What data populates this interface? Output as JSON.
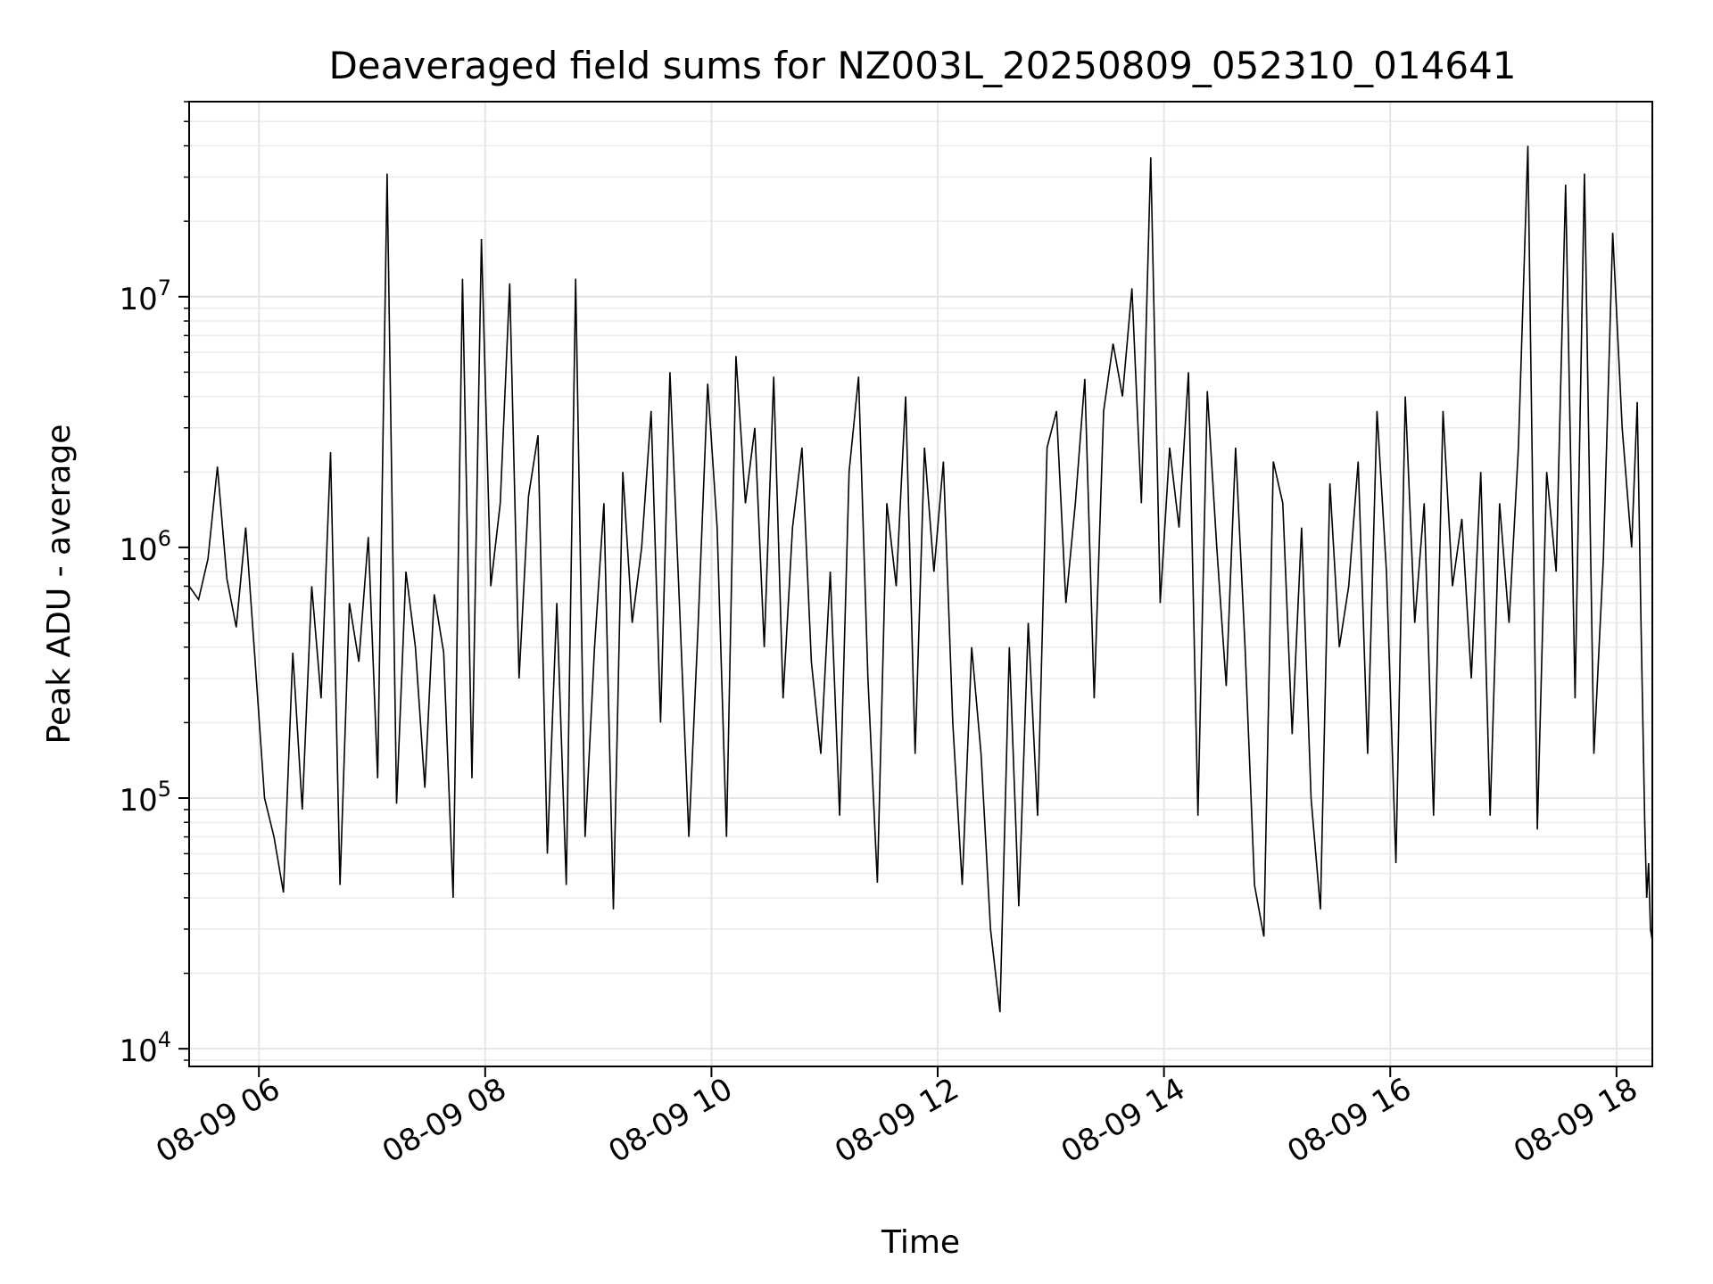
{
  "chart_data": {
    "type": "line",
    "title": "Deaveraged field sums for NZ003L_20250809_052310_014641",
    "xlabel": "Time",
    "ylabel": "Peak ADU - average",
    "yscale": "log",
    "ylim": [
      8500,
      60000000
    ],
    "xlim": [
      "2025-08-09 05:23",
      "2025-08-09 18:19"
    ],
    "grid": true,
    "line_color": "#000000",
    "x_ticks": [
      {
        "label": "08-09 06",
        "time": "2025-08-09 06:00"
      },
      {
        "label": "08-09 08",
        "time": "2025-08-09 08:00"
      },
      {
        "label": "08-09 10",
        "time": "2025-08-09 10:00"
      },
      {
        "label": "08-09 12",
        "time": "2025-08-09 12:00"
      },
      {
        "label": "08-09 14",
        "time": "2025-08-09 14:00"
      },
      {
        "label": "08-09 16",
        "time": "2025-08-09 16:00"
      },
      {
        "label": "08-09 18",
        "time": "2025-08-09 18:00"
      }
    ],
    "y_ticks": [
      {
        "base": "10",
        "exp": "4",
        "value": 10000
      },
      {
        "base": "10",
        "exp": "5",
        "value": 100000
      },
      {
        "base": "10",
        "exp": "6",
        "value": 1000000
      },
      {
        "base": "10",
        "exp": "7",
        "value": 10000000
      }
    ],
    "series": [
      {
        "points": [
          [
            "05:23",
            700000
          ],
          [
            "05:28",
            620000
          ],
          [
            "05:33",
            900000
          ],
          [
            "05:38",
            2100000
          ],
          [
            "05:43",
            750000
          ],
          [
            "05:48",
            480000
          ],
          [
            "05:53",
            1200000
          ],
          [
            "05:58",
            350000
          ],
          [
            "06:03",
            100000
          ],
          [
            "06:08",
            70000
          ],
          [
            "06:13",
            42000
          ],
          [
            "06:18",
            380000
          ],
          [
            "06:23",
            90000
          ],
          [
            "06:28",
            700000
          ],
          [
            "06:33",
            250000
          ],
          [
            "06:38",
            2400000
          ],
          [
            "06:43",
            45000
          ],
          [
            "06:48",
            600000
          ],
          [
            "06:53",
            350000
          ],
          [
            "06:58",
            1100000
          ],
          [
            "07:03",
            120000
          ],
          [
            "07:08",
            31000000
          ],
          [
            "07:13",
            95000
          ],
          [
            "07:18",
            800000
          ],
          [
            "07:23",
            400000
          ],
          [
            "07:28",
            110000
          ],
          [
            "07:33",
            650000
          ],
          [
            "07:38",
            380000
          ],
          [
            "07:43",
            40000
          ],
          [
            "07:48",
            11800000
          ],
          [
            "07:53",
            120000
          ],
          [
            "07:58",
            17000000
          ],
          [
            "08:03",
            700000
          ],
          [
            "08:08",
            1500000
          ],
          [
            "08:13",
            11300000
          ],
          [
            "08:18",
            300000
          ],
          [
            "08:23",
            1600000
          ],
          [
            "08:28",
            2800000
          ],
          [
            "08:33",
            60000
          ],
          [
            "08:38",
            600000
          ],
          [
            "08:43",
            45000
          ],
          [
            "08:48",
            11800000
          ],
          [
            "08:53",
            70000
          ],
          [
            "08:58",
            400000
          ],
          [
            "09:03",
            1500000
          ],
          [
            "09:08",
            36000
          ],
          [
            "09:13",
            2000000
          ],
          [
            "09:18",
            500000
          ],
          [
            "09:23",
            1000000
          ],
          [
            "09:28",
            3500000
          ],
          [
            "09:33",
            200000
          ],
          [
            "09:38",
            5000000
          ],
          [
            "09:43",
            600000
          ],
          [
            "09:48",
            70000
          ],
          [
            "09:53",
            500000
          ],
          [
            "09:58",
            4500000
          ],
          [
            "10:03",
            1200000
          ],
          [
            "10:08",
            70000
          ],
          [
            "10:13",
            5800000
          ],
          [
            "10:18",
            1500000
          ],
          [
            "10:23",
            3000000
          ],
          [
            "10:28",
            400000
          ],
          [
            "10:33",
            4800000
          ],
          [
            "10:38",
            250000
          ],
          [
            "10:43",
            1200000
          ],
          [
            "10:48",
            2500000
          ],
          [
            "10:53",
            350000
          ],
          [
            "10:58",
            150000
          ],
          [
            "11:03",
            800000
          ],
          [
            "11:08",
            85000
          ],
          [
            "11:13",
            2000000
          ],
          [
            "11:18",
            4800000
          ],
          [
            "11:23",
            300000
          ],
          [
            "11:28",
            46000
          ],
          [
            "11:33",
            1500000
          ],
          [
            "11:38",
            700000
          ],
          [
            "11:43",
            4000000
          ],
          [
            "11:48",
            150000
          ],
          [
            "11:53",
            2500000
          ],
          [
            "11:58",
            800000
          ],
          [
            "12:03",
            2200000
          ],
          [
            "12:08",
            200000
          ],
          [
            "12:13",
            45000
          ],
          [
            "12:18",
            400000
          ],
          [
            "12:23",
            150000
          ],
          [
            "12:28",
            30000
          ],
          [
            "12:33",
            14000
          ],
          [
            "12:38",
            400000
          ],
          [
            "12:43",
            37000
          ],
          [
            "12:48",
            500000
          ],
          [
            "12:53",
            85000
          ],
          [
            "12:58",
            2500000
          ],
          [
            "13:03",
            3500000
          ],
          [
            "13:08",
            600000
          ],
          [
            "13:13",
            1500000
          ],
          [
            "13:18",
            4700000
          ],
          [
            "13:23",
            250000
          ],
          [
            "13:28",
            3500000
          ],
          [
            "13:33",
            6500000
          ],
          [
            "13:38",
            4000000
          ],
          [
            "13:43",
            10800000
          ],
          [
            "13:48",
            1500000
          ],
          [
            "13:53",
            36000000
          ],
          [
            "13:58",
            600000
          ],
          [
            "14:03",
            2500000
          ],
          [
            "14:08",
            1200000
          ],
          [
            "14:13",
            5000000
          ],
          [
            "14:18",
            85000
          ],
          [
            "14:23",
            4200000
          ],
          [
            "14:28",
            1000000
          ],
          [
            "14:33",
            280000
          ],
          [
            "14:38",
            2500000
          ],
          [
            "14:43",
            400000
          ],
          [
            "14:48",
            45000
          ],
          [
            "14:53",
            28000
          ],
          [
            "14:58",
            2200000
          ],
          [
            "15:03",
            1500000
          ],
          [
            "15:08",
            180000
          ],
          [
            "15:13",
            1200000
          ],
          [
            "15:18",
            100000
          ],
          [
            "15:23",
            36000
          ],
          [
            "15:28",
            1800000
          ],
          [
            "15:33",
            400000
          ],
          [
            "15:38",
            700000
          ],
          [
            "15:43",
            2200000
          ],
          [
            "15:48",
            150000
          ],
          [
            "15:53",
            3500000
          ],
          [
            "15:58",
            800000
          ],
          [
            "16:03",
            55000
          ],
          [
            "16:08",
            4000000
          ],
          [
            "16:13",
            500000
          ],
          [
            "16:18",
            1500000
          ],
          [
            "16:23",
            85000
          ],
          [
            "16:28",
            3500000
          ],
          [
            "16:33",
            700000
          ],
          [
            "16:38",
            1300000
          ],
          [
            "16:43",
            300000
          ],
          [
            "16:48",
            2000000
          ],
          [
            "16:53",
            85000
          ],
          [
            "16:58",
            1500000
          ],
          [
            "17:03",
            500000
          ],
          [
            "17:08",
            2500000
          ],
          [
            "17:13",
            40000000
          ],
          [
            "17:18",
            75000
          ],
          [
            "17:23",
            2000000
          ],
          [
            "17:28",
            800000
          ],
          [
            "17:33",
            28000000
          ],
          [
            "17:38",
            250000
          ],
          [
            "17:43",
            31000000
          ],
          [
            "17:48",
            150000
          ],
          [
            "17:53",
            900000
          ],
          [
            "17:58",
            18000000
          ],
          [
            "18:03",
            3000000
          ],
          [
            "18:08",
            1000000
          ],
          [
            "18:11",
            3800000
          ],
          [
            "18:13",
            500000
          ],
          [
            "18:15",
            80000
          ],
          [
            "18:16",
            40000
          ],
          [
            "18:17",
            55000
          ],
          [
            "18:18",
            30000
          ],
          [
            "18:19",
            27000
          ]
        ]
      }
    ]
  }
}
